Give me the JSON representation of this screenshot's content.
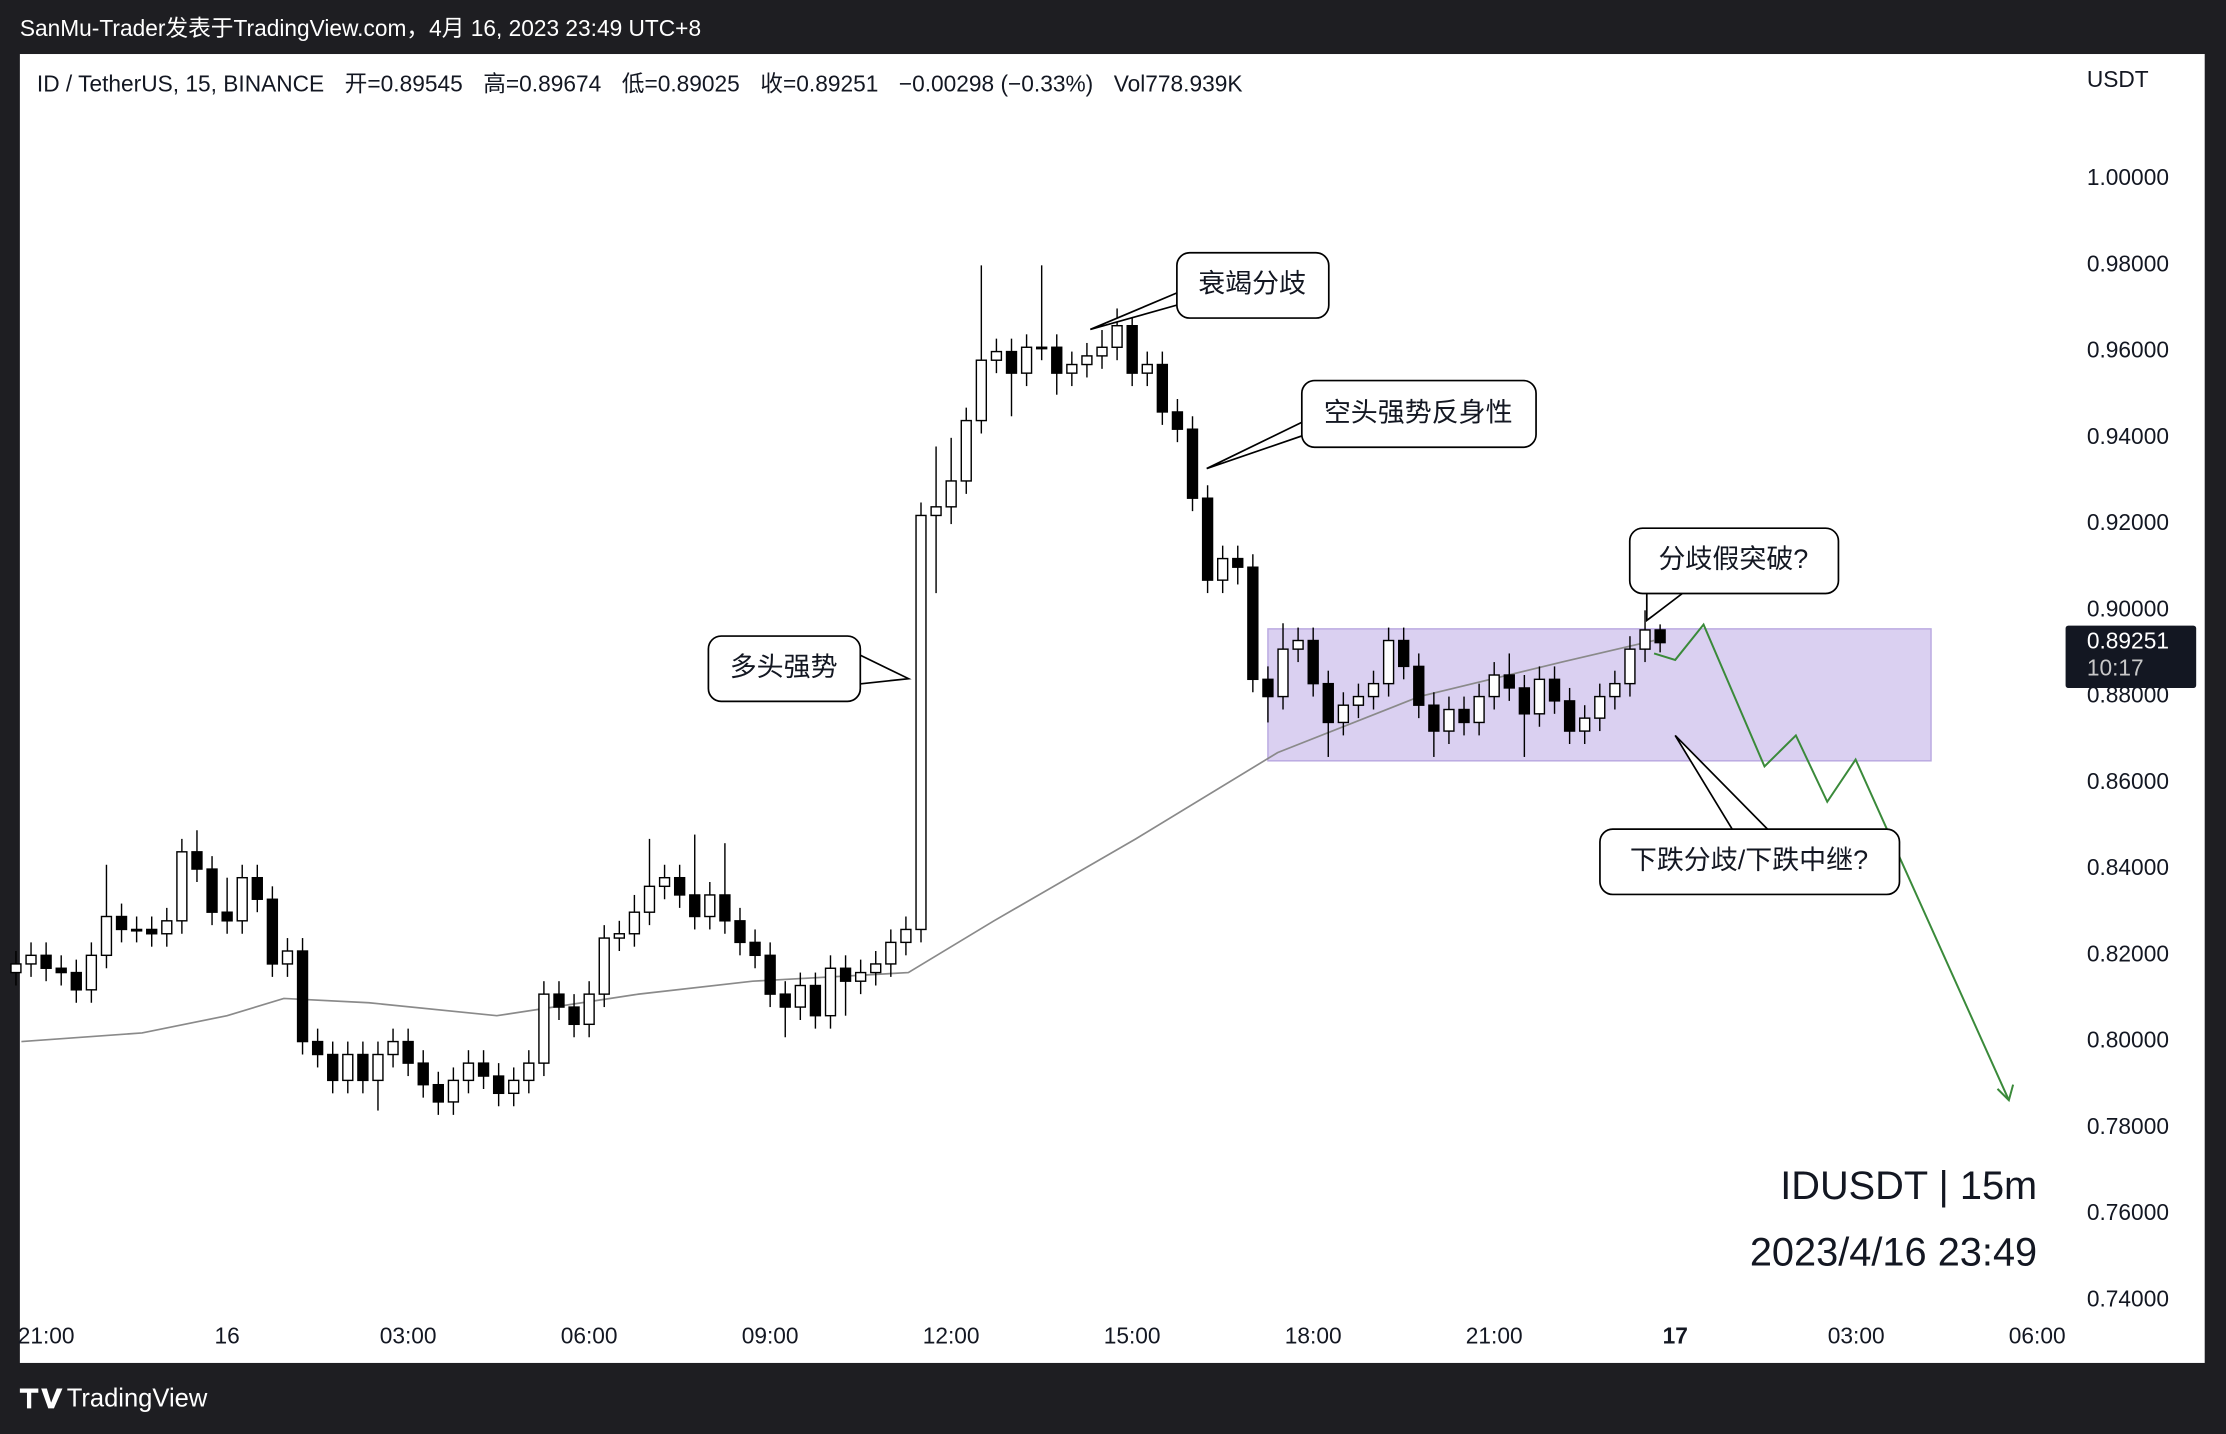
{
  "header": {
    "publisher": "SanMu-Trader发表于TradingView.com，4月 16, 2023 23:49 UTC+8",
    "footer": "TradingView"
  },
  "chart_data": {
    "type": "candlestick",
    "legend": [
      "ID / TetherUS, 15, BINANCE",
      "开=0.89545",
      "高=0.89674",
      "低=0.89025",
      "收=0.89251",
      "−0.00298 (−0.33%)",
      "Vol778.939K"
    ],
    "y_unit": "USDT",
    "countdown": "10:17",
    "watermark": [
      "IDUSDT | 15m",
      "2023/4/16 23:49"
    ],
    "up_color": "#ffffff",
    "down_color": "#000000",
    "edge_color": "#000000",
    "xlim": [
      -3.435,
      30.47
    ],
    "ylim": [
      0.737,
      1.029
    ],
    "xticks": [
      {
        "value": -3,
        "label": "21:00"
      },
      {
        "value": 0,
        "label": "16"
      },
      {
        "value": 3,
        "label": "03:00"
      },
      {
        "value": 6,
        "label": "06:00"
      },
      {
        "value": 9,
        "label": "09:00"
      },
      {
        "value": 12,
        "label": "12:00"
      },
      {
        "value": 15,
        "label": "15:00"
      },
      {
        "value": 18,
        "label": "18:00"
      },
      {
        "value": 21,
        "label": "21:00"
      },
      {
        "value": 24,
        "label": "17"
      },
      {
        "value": 27,
        "label": "03:00"
      },
      {
        "value": 30,
        "label": "06:00"
      }
    ],
    "yticks": [
      {
        "value": 0.74,
        "label": "0.74000"
      },
      {
        "value": 0.76,
        "label": "0.76000"
      },
      {
        "value": 0.78,
        "label": "0.78000"
      },
      {
        "value": 0.8,
        "label": "0.80000"
      },
      {
        "value": 0.82,
        "label": "0.82000"
      },
      {
        "value": 0.84,
        "label": "0.84000"
      },
      {
        "value": 0.86,
        "label": "0.86000"
      },
      {
        "value": 0.88,
        "label": "0.88000"
      },
      {
        "value": 0.9,
        "label": "0.90000"
      },
      {
        "value": 0.92,
        "label": "0.92000"
      },
      {
        "value": 0.94,
        "label": "0.94000"
      },
      {
        "value": 0.96,
        "label": "0.96000"
      },
      {
        "value": 0.98,
        "label": "0.98000"
      },
      {
        "value": 1.0,
        "label": "1.00000"
      }
    ],
    "x": [
      -3.5,
      -3.25,
      -3,
      -2.75,
      -2.5,
      -2.25,
      -2,
      -1.75,
      -1.5,
      -1.25,
      -1,
      -0.75,
      -0.5,
      -0.25,
      0,
      0.25,
      0.5,
      0.75,
      1,
      1.25,
      1.5,
      1.75,
      2,
      2.25,
      2.5,
      2.75,
      3,
      3.25,
      3.5,
      3.75,
      4,
      4.25,
      4.5,
      4.75,
      5,
      5.25,
      5.5,
      5.75,
      6,
      6.25,
      6.5,
      6.75,
      7,
      7.25,
      7.5,
      7.75,
      8,
      8.25,
      8.5,
      8.75,
      9,
      9.25,
      9.5,
      9.75,
      10,
      10.25,
      10.5,
      10.75,
      11,
      11.25,
      11.5,
      11.75,
      12,
      12.25,
      12.5,
      12.75,
      13,
      13.25,
      13.5,
      13.75,
      14,
      14.25,
      14.5,
      14.75,
      15,
      15.25,
      15.5,
      15.75,
      16,
      16.25,
      16.5,
      16.75,
      17,
      17.25,
      17.5,
      17.75,
      18,
      18.25,
      18.5,
      18.75,
      19,
      19.25,
      19.5,
      19.75,
      20,
      20.25,
      20.5,
      20.75,
      21,
      21.25,
      21.5,
      21.75,
      22,
      22.25,
      22.5,
      22.75,
      23,
      23.25,
      23.5,
      23.75
    ],
    "open": [
      0.816,
      0.818,
      0.82,
      0.817,
      0.816,
      0.812,
      0.82,
      0.829,
      0.826,
      0.826,
      0.825,
      0.828,
      0.844,
      0.84,
      0.83,
      0.828,
      0.838,
      0.833,
      0.818,
      0.821,
      0.8,
      0.797,
      0.791,
      0.797,
      0.791,
      0.797,
      0.8,
      0.795,
      0.79,
      0.786,
      0.791,
      0.795,
      0.792,
      0.788,
      0.791,
      0.795,
      0.811,
      0.808,
      0.804,
      0.811,
      0.824,
      0.825,
      0.83,
      0.836,
      0.838,
      0.834,
      0.829,
      0.834,
      0.828,
      0.823,
      0.82,
      0.811,
      0.808,
      0.813,
      0.806,
      0.817,
      0.814,
      0.816,
      0.818,
      0.823,
      0.826,
      0.922,
      0.924,
      0.93,
      0.944,
      0.958,
      0.96,
      0.955,
      0.961,
      0.961,
      0.955,
      0.957,
      0.959,
      0.961,
      0.966,
      0.955,
      0.957,
      0.946,
      0.942,
      0.926,
      0.907,
      0.912,
      0.91,
      0.884,
      0.88,
      0.891,
      0.893,
      0.883,
      0.874,
      0.878,
      0.88,
      0.883,
      0.893,
      0.887,
      0.878,
      0.872,
      0.877,
      0.874,
      0.88,
      0.885,
      0.882,
      0.876,
      0.884,
      0.879,
      0.872,
      0.875,
      0.88,
      0.883,
      0.891,
      0.89545
    ],
    "high": [
      0.821,
      0.823,
      0.823,
      0.82,
      0.819,
      0.823,
      0.841,
      0.832,
      0.829,
      0.829,
      0.831,
      0.847,
      0.849,
      0.843,
      0.838,
      0.841,
      0.841,
      0.836,
      0.824,
      0.824,
      0.803,
      0.8,
      0.8,
      0.8,
      0.8,
      0.803,
      0.803,
      0.798,
      0.793,
      0.794,
      0.798,
      0.798,
      0.795,
      0.794,
      0.798,
      0.814,
      0.814,
      0.811,
      0.814,
      0.827,
      0.828,
      0.834,
      0.847,
      0.841,
      0.841,
      0.848,
      0.837,
      0.846,
      0.831,
      0.826,
      0.823,
      0.814,
      0.816,
      0.816,
      0.82,
      0.82,
      0.819,
      0.821,
      0.826,
      0.829,
      0.925,
      0.938,
      0.94,
      0.947,
      0.98,
      0.963,
      0.963,
      0.964,
      0.98,
      0.964,
      0.96,
      0.962,
      0.965,
      0.97,
      0.969,
      0.96,
      0.96,
      0.949,
      0.945,
      0.929,
      0.915,
      0.915,
      0.913,
      0.887,
      0.897,
      0.896,
      0.896,
      0.886,
      0.881,
      0.883,
      0.886,
      0.896,
      0.896,
      0.89,
      0.881,
      0.88,
      0.88,
      0.883,
      0.888,
      0.89,
      0.885,
      0.887,
      0.887,
      0.882,
      0.878,
      0.883,
      0.886,
      0.894,
      0.9,
      0.89674
    ],
    "low": [
      0.813,
      0.815,
      0.814,
      0.813,
      0.809,
      0.809,
      0.817,
      0.823,
      0.823,
      0.822,
      0.822,
      0.825,
      0.837,
      0.827,
      0.825,
      0.825,
      0.83,
      0.815,
      0.815,
      0.797,
      0.794,
      0.788,
      0.788,
      0.788,
      0.784,
      0.794,
      0.792,
      0.787,
      0.783,
      0.783,
      0.788,
      0.789,
      0.785,
      0.785,
      0.788,
      0.792,
      0.805,
      0.801,
      0.801,
      0.808,
      0.821,
      0.822,
      0.827,
      0.833,
      0.831,
      0.826,
      0.826,
      0.825,
      0.82,
      0.817,
      0.808,
      0.801,
      0.805,
      0.803,
      0.803,
      0.806,
      0.811,
      0.813,
      0.815,
      0.82,
      0.823,
      0.904,
      0.92,
      0.927,
      0.941,
      0.955,
      0.945,
      0.952,
      0.958,
      0.95,
      0.952,
      0.954,
      0.956,
      0.958,
      0.952,
      0.952,
      0.943,
      0.939,
      0.923,
      0.904,
      0.904,
      0.906,
      0.881,
      0.874,
      0.877,
      0.888,
      0.88,
      0.866,
      0.871,
      0.875,
      0.877,
      0.88,
      0.884,
      0.875,
      0.866,
      0.869,
      0.871,
      0.871,
      0.877,
      0.879,
      0.866,
      0.873,
      0.876,
      0.869,
      0.869,
      0.872,
      0.877,
      0.88,
      0.888,
      0.89025
    ],
    "close": [
      0.818,
      0.82,
      0.817,
      0.816,
      0.812,
      0.82,
      0.829,
      0.826,
      0.826,
      0.825,
      0.828,
      0.844,
      0.84,
      0.83,
      0.828,
      0.838,
      0.833,
      0.818,
      0.821,
      0.8,
      0.797,
      0.791,
      0.797,
      0.791,
      0.797,
      0.8,
      0.795,
      0.79,
      0.786,
      0.791,
      0.795,
      0.792,
      0.788,
      0.791,
      0.795,
      0.811,
      0.808,
      0.804,
      0.811,
      0.824,
      0.825,
      0.83,
      0.836,
      0.838,
      0.834,
      0.829,
      0.834,
      0.828,
      0.823,
      0.82,
      0.811,
      0.808,
      0.813,
      0.806,
      0.817,
      0.814,
      0.816,
      0.818,
      0.823,
      0.826,
      0.922,
      0.924,
      0.93,
      0.944,
      0.958,
      0.96,
      0.955,
      0.961,
      0.961,
      0.955,
      0.957,
      0.959,
      0.961,
      0.966,
      0.955,
      0.957,
      0.946,
      0.942,
      0.926,
      0.907,
      0.912,
      0.91,
      0.884,
      0.88,
      0.891,
      0.893,
      0.883,
      0.874,
      0.878,
      0.88,
      0.883,
      0.893,
      0.887,
      0.878,
      0.872,
      0.877,
      0.874,
      0.88,
      0.885,
      0.882,
      0.876,
      0.884,
      0.879,
      0.872,
      0.875,
      0.88,
      0.883,
      0.891,
      0.89545,
      0.89251
    ],
    "ma": {
      "color": "#8a8a8a",
      "x": [
        -3.41,
        -1.41,
        0,
        0.94,
        2.35,
        4.47,
        6.82,
        8.71,
        11.29,
        12.71,
        15.06,
        17.41,
        19.76,
        22.12,
        23.65
      ],
      "values": [
        0.8,
        0.802,
        0.806,
        0.81,
        0.809,
        0.806,
        0.811,
        0.814,
        0.816,
        0.828,
        0.847,
        0.867,
        0.88,
        0.888,
        0.893
      ]
    },
    "range_box": {
      "color": "#d4c8ee",
      "xlim": [
        17.25,
        28.24
      ],
      "ylim": [
        0.8651,
        0.8957
      ]
    },
    "projection": {
      "color": "#3a8a3a",
      "x": [
        23.65,
        24.0,
        24.47,
        25.48,
        26.0,
        26.52,
        26.99,
        29.53
      ],
      "values": [
        0.89,
        0.8885,
        0.8967,
        0.8638,
        0.871,
        0.8556,
        0.8654,
        0.7864
      ]
    },
    "annotations": [
      "衰竭分歧",
      "空头强势反身性",
      "分歧假突破?",
      "多头强势",
      "下跌分歧/下跌中继?"
    ]
  }
}
